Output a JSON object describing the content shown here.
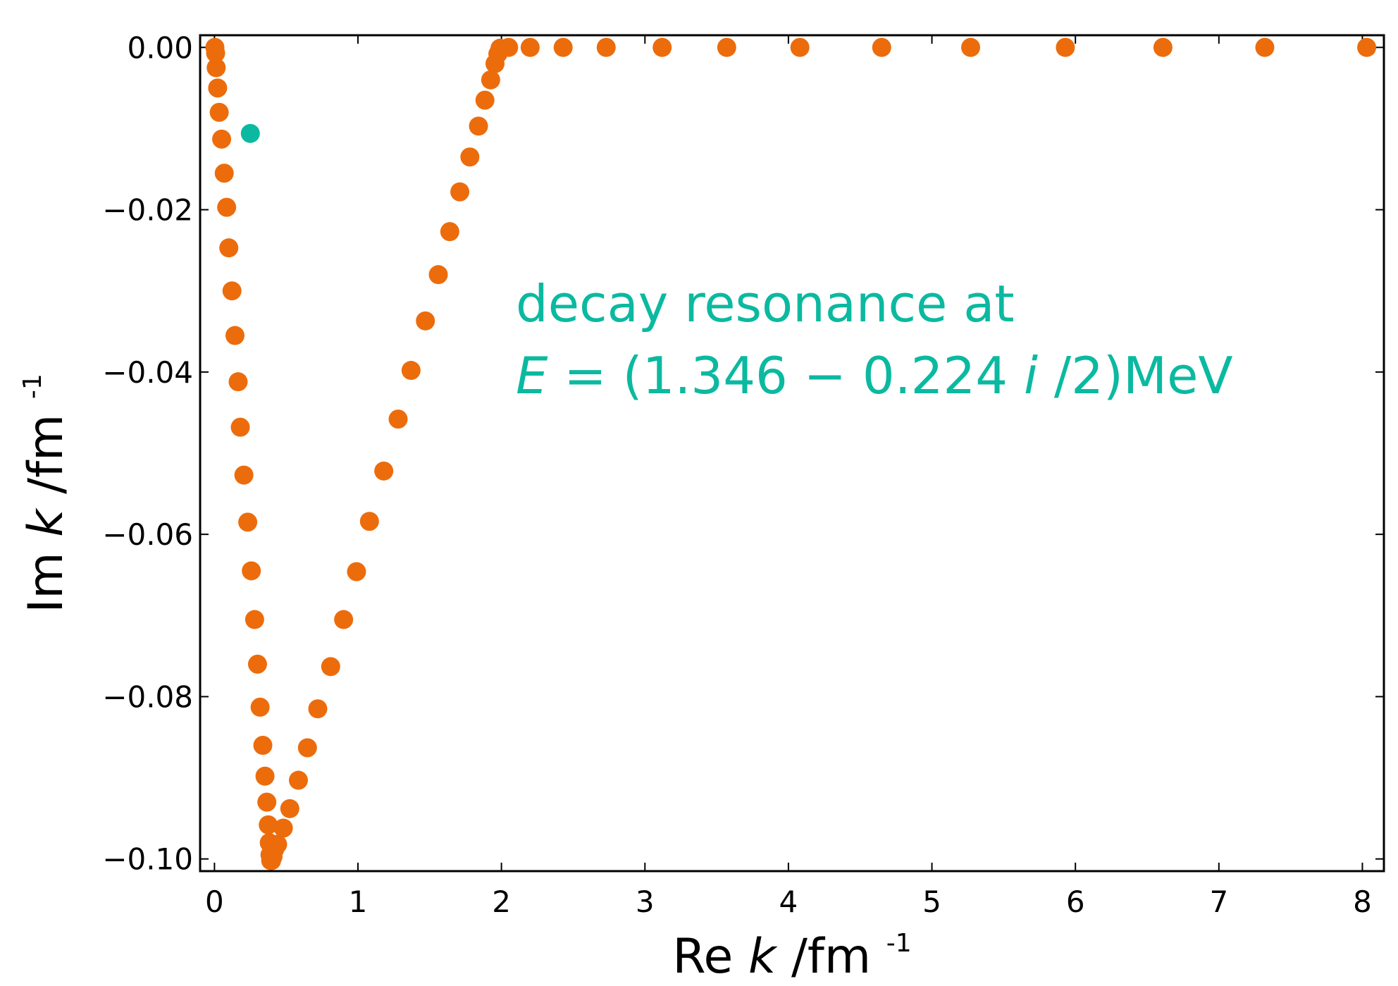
{
  "chart_data": {
    "type": "scatter",
    "xlabel": {
      "prefix": "Re",
      "var": "k",
      "unit": "/fm",
      "sup": "-1"
    },
    "ylabel": {
      "prefix": "Im",
      "var": "k",
      "unit": "/fm",
      "sup": "-1"
    },
    "xlim": [
      -0.1,
      8.15
    ],
    "ylim": [
      -0.1015,
      0.0015
    ],
    "xticks": [
      0,
      1,
      2,
      3,
      4,
      5,
      6,
      7,
      8
    ],
    "xtick_labels": [
      "0",
      "1",
      "2",
      "3",
      "4",
      "5",
      "6",
      "7",
      "8"
    ],
    "yticks": [
      0.0,
      -0.02,
      -0.04,
      -0.06,
      -0.08,
      -0.1
    ],
    "ytick_labels": [
      "0.00",
      "−0.02",
      "−0.04",
      "−0.06",
      "−0.08",
      "−0.10"
    ],
    "grid": false,
    "colors": {
      "trajectory": "#ec6c0c",
      "resonance": "#0bb9a0"
    },
    "series": [
      {
        "color": "#ec6c0c",
        "points": [
          [
            0.003,
            0.0
          ],
          [
            0.008,
            -0.0007
          ],
          [
            0.012,
            -0.0025
          ],
          [
            0.022,
            -0.005
          ],
          [
            0.033,
            -0.008
          ],
          [
            0.05,
            -0.0113
          ],
          [
            0.068,
            -0.0155
          ],
          [
            0.085,
            -0.0197
          ],
          [
            0.1,
            -0.0247
          ],
          [
            0.122,
            -0.03
          ],
          [
            0.143,
            -0.0355
          ],
          [
            0.165,
            -0.0412
          ],
          [
            0.18,
            -0.0468
          ],
          [
            0.205,
            -0.0527
          ],
          [
            0.232,
            -0.0585
          ],
          [
            0.257,
            -0.0645
          ],
          [
            0.28,
            -0.0705
          ],
          [
            0.3,
            -0.076
          ],
          [
            0.318,
            -0.0813
          ],
          [
            0.337,
            -0.086
          ],
          [
            0.352,
            -0.0898
          ],
          [
            0.365,
            -0.093
          ],
          [
            0.375,
            -0.0958
          ],
          [
            0.382,
            -0.098
          ],
          [
            0.387,
            -0.0995
          ],
          [
            0.392,
            -0.1002
          ],
          [
            0.398,
            -0.1002
          ],
          [
            0.408,
            -0.0997
          ],
          [
            0.42,
            -0.0988
          ],
          [
            0.44,
            -0.0982
          ],
          [
            0.48,
            -0.0962
          ],
          [
            0.525,
            -0.0938
          ],
          [
            0.585,
            -0.0903
          ],
          [
            0.648,
            -0.0863
          ],
          [
            0.72,
            -0.0815
          ],
          [
            0.81,
            -0.0763
          ],
          [
            0.9,
            -0.0705
          ],
          [
            0.99,
            -0.0646
          ],
          [
            1.08,
            -0.0584
          ],
          [
            1.18,
            -0.0522
          ],
          [
            1.28,
            -0.0458
          ],
          [
            1.37,
            -0.0398
          ],
          [
            1.47,
            -0.0337
          ],
          [
            1.56,
            -0.028
          ],
          [
            1.64,
            -0.0227
          ],
          [
            1.71,
            -0.0178
          ],
          [
            1.78,
            -0.0135
          ],
          [
            1.84,
            -0.0097
          ],
          [
            1.885,
            -0.0065
          ],
          [
            1.925,
            -0.004
          ],
          [
            1.955,
            -0.002
          ],
          [
            1.975,
            -0.0008
          ],
          [
            1.99,
            -0.0001
          ],
          [
            2.05,
            0.0
          ],
          [
            2.2,
            0.0
          ],
          [
            2.43,
            0.0
          ],
          [
            2.73,
            0.0
          ],
          [
            3.12,
            0.0
          ],
          [
            3.57,
            0.0
          ],
          [
            4.08,
            0.0
          ],
          [
            4.65,
            0.0
          ],
          [
            5.27,
            0.0
          ],
          [
            5.93,
            0.0
          ],
          [
            6.61,
            0.0
          ],
          [
            7.32,
            0.0
          ],
          [
            8.03,
            0.0
          ]
        ]
      },
      {
        "color": "#0bb9a0",
        "points": [
          [
            0.25,
            -0.0106
          ]
        ]
      }
    ],
    "annotation": {
      "line1": "decay resonance at",
      "line2_var": "E",
      "line2_mid": " = (1.346 − 0.224",
      "line2_i": "i",
      "line2_end": "/2)MeV",
      "color": "#0bb9a0"
    }
  }
}
